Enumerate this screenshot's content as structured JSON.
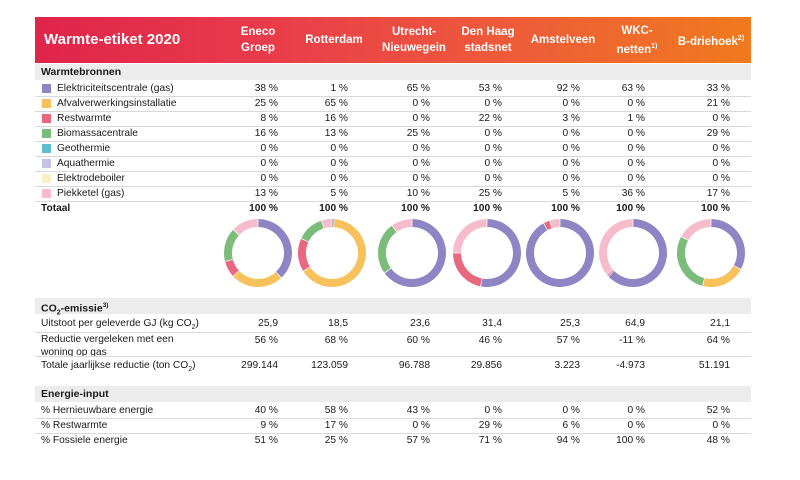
{
  "title": "Warmte-etiket 2020",
  "columns": [
    {
      "line1": "Eneco",
      "line2": "Groep",
      "sup": ""
    },
    {
      "line1": "Rotterdam",
      "line2": "",
      "sup": ""
    },
    {
      "line1": "Utrecht-",
      "line2": "Nieuwegein",
      "sup": ""
    },
    {
      "line1": "Den Haag",
      "line2": "stadsnet",
      "sup": ""
    },
    {
      "line1": "Amstelveen",
      "line2": "",
      "sup": ""
    },
    {
      "line1": "WKC-",
      "line2": "netten",
      "sup": "1)"
    },
    {
      "line1": "B-driehoek",
      "line2": "",
      "sup": "2)"
    }
  ],
  "sections": {
    "warmtebronnen": "Warmtebronnen",
    "co2_prefix": "CO",
    "co2_sub": "2",
    "co2_suffix": "-emissie",
    "co2_sup": "3)",
    "energie": "Energie-input"
  },
  "sources": [
    {
      "label": "Elektriciteitscentrale (gas)",
      "color": "#8e86c4",
      "values": [
        "38 %",
        "1 %",
        "65 %",
        "53 %",
        "92 %",
        "63 %",
        "33 %"
      ]
    },
    {
      "label": "Afvalverwerkingsinstallatie",
      "color": "#f7c25c",
      "values": [
        "25 %",
        "65 %",
        "0 %",
        "0 %",
        "0 %",
        "0 %",
        "21 %"
      ]
    },
    {
      "label": "Restwarmte",
      "color": "#e8697f",
      "values": [
        "8 %",
        "16 %",
        "0 %",
        "22 %",
        "3 %",
        "1 %",
        "0 %"
      ]
    },
    {
      "label": "Biomassacentrale",
      "color": "#7cbc7a",
      "values": [
        "16 %",
        "13 %",
        "25 %",
        "0 %",
        "0 %",
        "0 %",
        "29 %"
      ]
    },
    {
      "label": "Geothermie",
      "color": "#5bbfcf",
      "values": [
        "0 %",
        "0 %",
        "0 %",
        "0 %",
        "0 %",
        "0 %",
        "0 %"
      ]
    },
    {
      "label": "Aquathermie",
      "color": "#c3c3e3",
      "values": [
        "0 %",
        "0 %",
        "0 %",
        "0 %",
        "0 %",
        "0 %",
        "0 %"
      ]
    },
    {
      "label": "Elektrodeboiler",
      "color": "#faeec4",
      "values": [
        "0 %",
        "0 %",
        "0 %",
        "0 %",
        "0 %",
        "0 %",
        "0 %"
      ]
    },
    {
      "label": "Piekketel (gas)",
      "color": "#f6bccb",
      "values": [
        "13 %",
        "5 %",
        "10 %",
        "25 %",
        "5 %",
        "36 %",
        "17 %"
      ]
    }
  ],
  "total": {
    "label": "Totaal",
    "values": [
      "100 %",
      "100 %",
      "100 %",
      "100 %",
      "100 %",
      "100 %",
      "100 %"
    ]
  },
  "donut_data": [
    [
      38,
      25,
      8,
      16,
      0,
      0,
      0,
      13
    ],
    [
      1,
      65,
      16,
      13,
      0,
      0,
      0,
      5
    ],
    [
      65,
      0,
      0,
      25,
      0,
      0,
      0,
      10
    ],
    [
      53,
      0,
      22,
      0,
      0,
      0,
      0,
      25
    ],
    [
      92,
      0,
      3,
      0,
      0,
      0,
      0,
      5
    ],
    [
      63,
      0,
      1,
      0,
      0,
      0,
      0,
      36
    ],
    [
      33,
      21,
      0,
      29,
      0,
      0,
      0,
      17
    ]
  ],
  "co2": {
    "uitstoot": {
      "label_prefix": "Uitstoot per geleverde GJ (kg CO",
      "label_sub": "2",
      "label_suffix": ")",
      "values": [
        "25,9",
        "18,5",
        "23,6",
        "31,4",
        "25,3",
        "64,9",
        "21,1"
      ]
    },
    "reductie": {
      "label_line1": "Reductie vergeleken met een",
      "label_line2": "woning op gas",
      "values": [
        "56 %",
        "68 %",
        "60 %",
        "46 %",
        "57 %",
        "-11 %",
        "64 %"
      ]
    },
    "totale": {
      "label_prefix": "Totale jaarlijkse reductie (ton CO",
      "label_sub": "2",
      "label_suffix": ")",
      "values": [
        "299.144",
        "123.059",
        "96.788",
        "29.856",
        "3.223",
        "-4.973",
        "51.191"
      ]
    }
  },
  "energie": [
    {
      "label": "% Hernieuwbare energie",
      "values": [
        "40 %",
        "58 %",
        "43 %",
        "0 %",
        "0 %",
        "0 %",
        "52 %"
      ]
    },
    {
      "label": "% Restwarmte",
      "values": [
        "9 %",
        "17 %",
        "0 %",
        "29 %",
        "6 %",
        "0 %",
        "0 %"
      ]
    },
    {
      "label": "% Fossiele energie",
      "values": [
        "51 %",
        "25 %",
        "57 %",
        "71 %",
        "94 %",
        "100 %",
        "48 %"
      ]
    }
  ]
}
